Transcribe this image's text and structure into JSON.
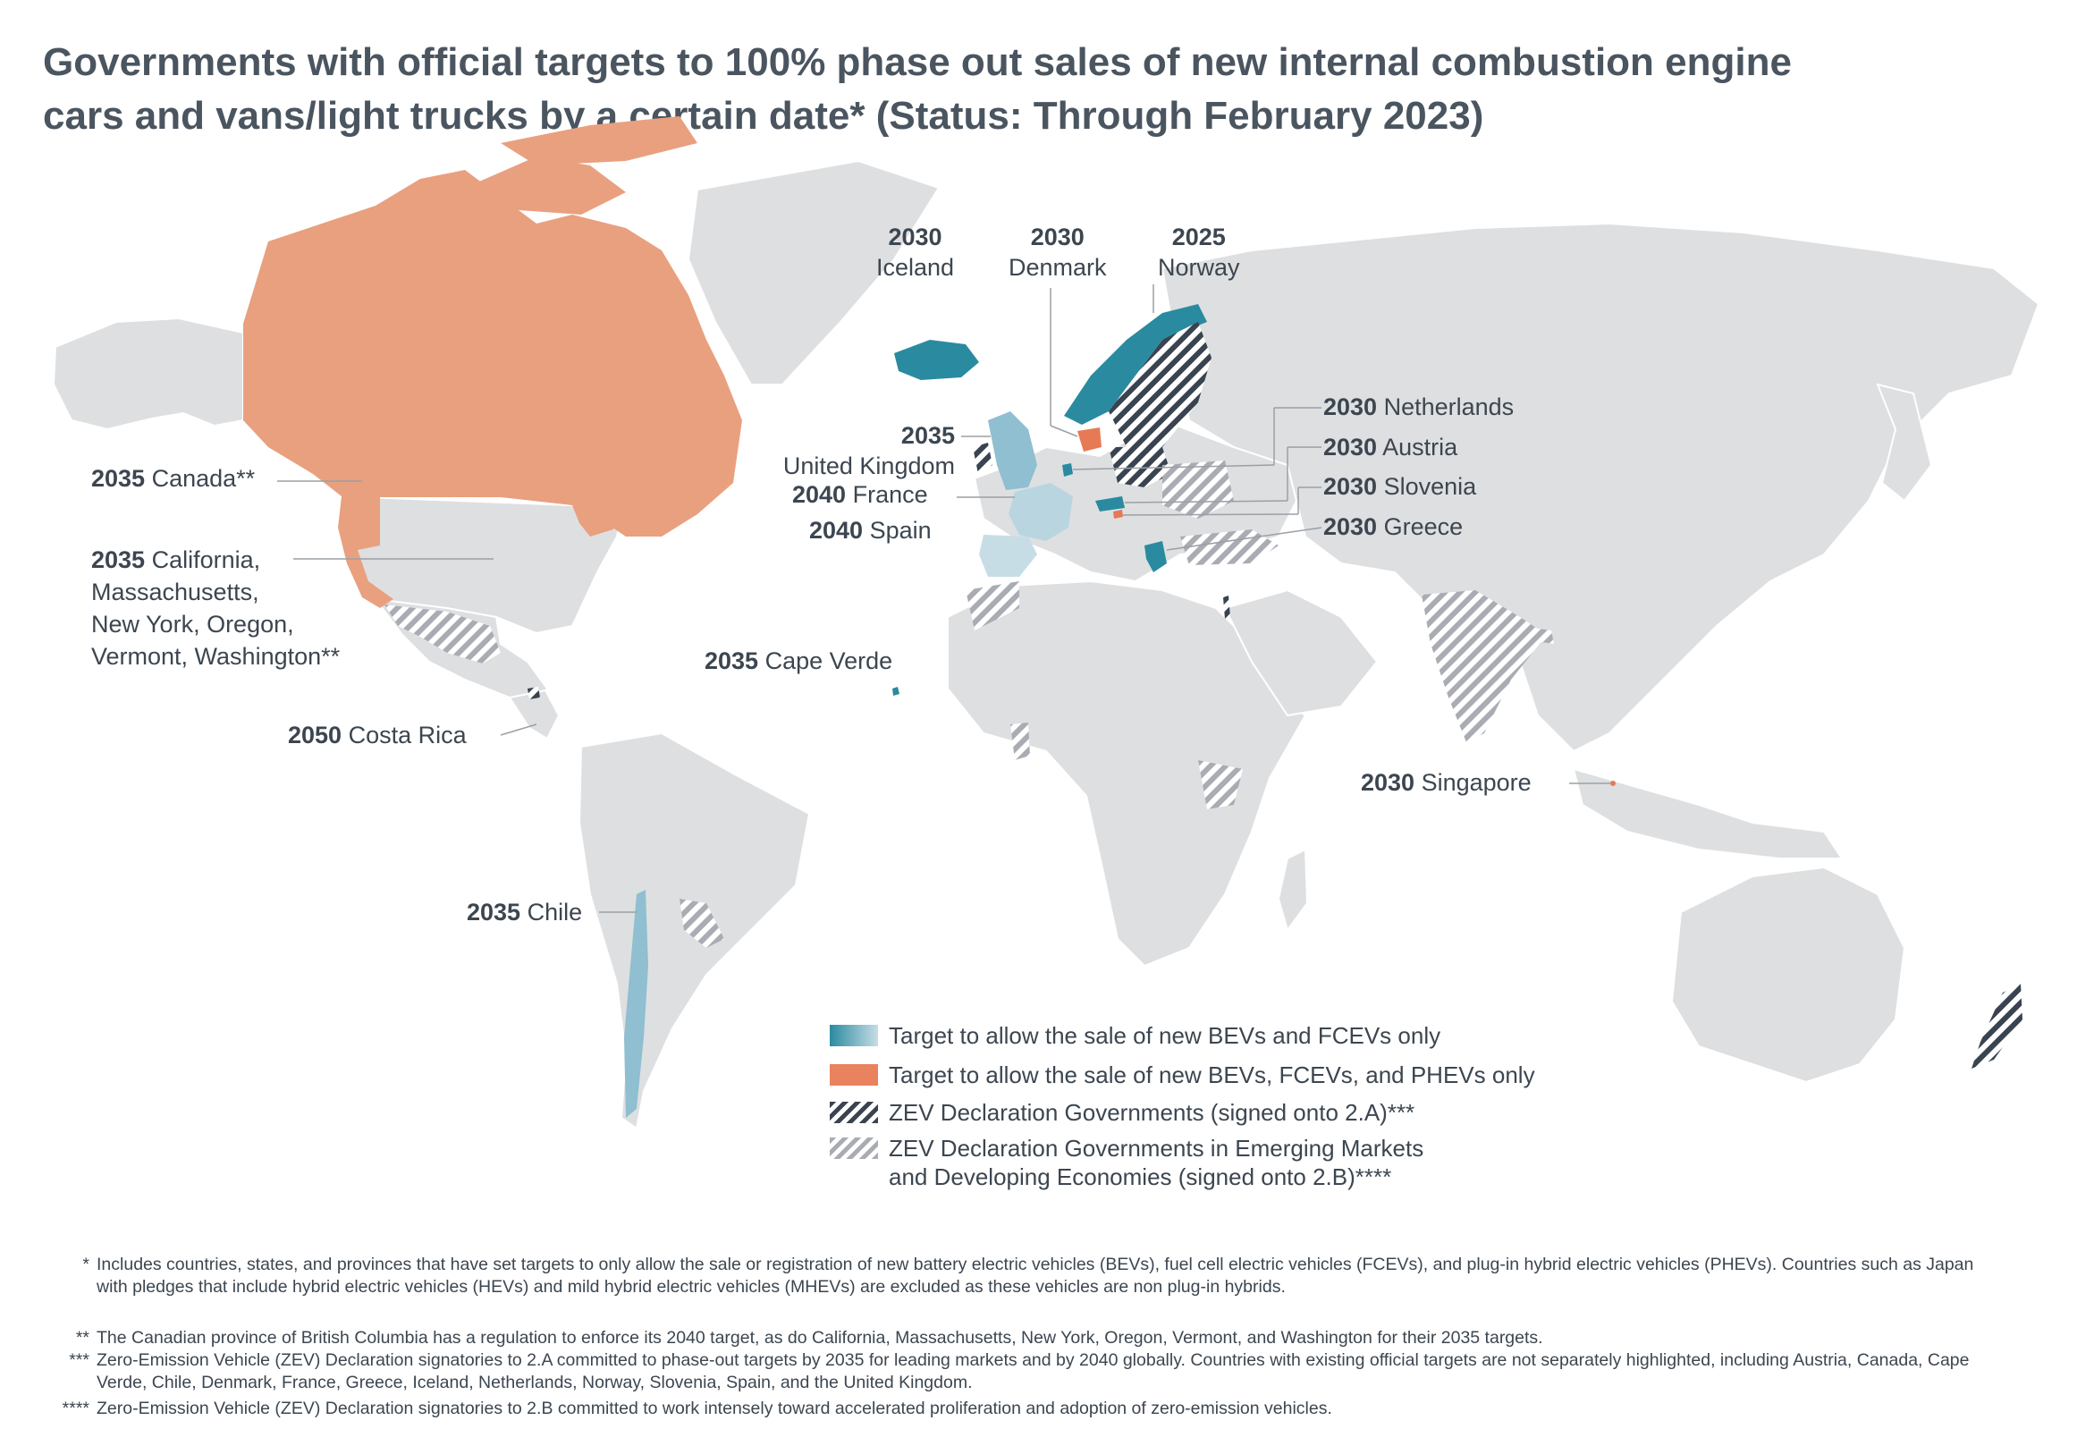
{
  "title": {
    "line1": "Governments with official targets to 100% phase out sales of new internal combustion engine",
    "line2": "cars and vans/light trucks by a certain date* (Status: Through February 2023)"
  },
  "colors": {
    "land": "#dedfe1",
    "teal": "#2a8aa0",
    "teal_light": "#8fbfd0",
    "orange": "#e9a07f",
    "orange_strong": "#e57a55",
    "hatch_dark": "#3a4350",
    "hatch_light": "#a9acb3"
  },
  "labels": {
    "iceland": {
      "year": "2030",
      "name": "Iceland"
    },
    "denmark": {
      "year": "2030",
      "name": "Denmark"
    },
    "norway": {
      "year": "2025",
      "name": "Norway"
    },
    "uk": {
      "year": "2035",
      "name": "United Kingdom"
    },
    "france": {
      "year": "2040",
      "name": "France"
    },
    "spain": {
      "year": "2040",
      "name": "Spain"
    },
    "netherlands": {
      "year": "2030",
      "name": "Netherlands"
    },
    "austria": {
      "year": "2030",
      "name": "Austria"
    },
    "slovenia": {
      "year": "2030",
      "name": "Slovenia"
    },
    "greece": {
      "year": "2030",
      "name": "Greece"
    },
    "canada": {
      "year": "2035",
      "name": "Canada**"
    },
    "us_states": {
      "year": "2035",
      "line1": "California,",
      "line2": "Massachusetts,",
      "line3": "New York, Oregon,",
      "line4": "Vermont, Washington**"
    },
    "cape_verde": {
      "year": "2035",
      "name": "Cape Verde"
    },
    "costa_rica": {
      "year": "2050",
      "name": "Costa Rica"
    },
    "singapore": {
      "year": "2030",
      "name": "Singapore"
    },
    "chile": {
      "year": "2035",
      "name": "Chile"
    }
  },
  "legend": {
    "teal": "Target to allow the sale of new BEVs and FCEVs only",
    "orange": "Target to allow the sale of new BEVs, FCEVs, and PHEVs only",
    "dark_hatch": "ZEV Declaration Governments (signed onto 2.A)***",
    "light_hatch_line1": "ZEV Declaration Governments in Emerging Markets",
    "light_hatch_line2": "and Developing Economies (signed onto 2.B)****"
  },
  "footnotes": [
    {
      "mark": "*",
      "text": "Includes countries, states, and provinces that have set targets to only allow the sale or registration of new battery electric vehicles (BEVs), fuel cell electric vehicles (FCEVs), and plug-in hybrid electric vehicles (PHEVs). Countries such as Japan with pledges that include hybrid electric vehicles (HEVs) and mild hybrid electric vehicles (MHEVs) are excluded as these vehicles are non plug-in hybrids."
    },
    {
      "mark": "**",
      "text": "The Canadian province of British Columbia has a regulation to enforce its 2040 target, as do California, Massachusetts, New York, Oregon, Vermont, and Washington for their 2035 targets."
    },
    {
      "mark": "***",
      "text": "Zero-Emission Vehicle (ZEV) Declaration signatories to 2.A committed to phase-out targets by 2035 for leading markets and by 2040 globally. Countries with existing official targets are not separately highlighted, including Austria, Canada, Cape Verde, Chile, Denmark, France, Greece, Iceland, Netherlands, Norway, Slovenia, Spain, and the United Kingdom."
    },
    {
      "mark": "****",
      "text": "Zero-Emission Vehicle (ZEV) Declaration signatories to 2.B committed to work intensely toward accelerated proliferation and adoption of zero-emission vehicles."
    }
  ]
}
